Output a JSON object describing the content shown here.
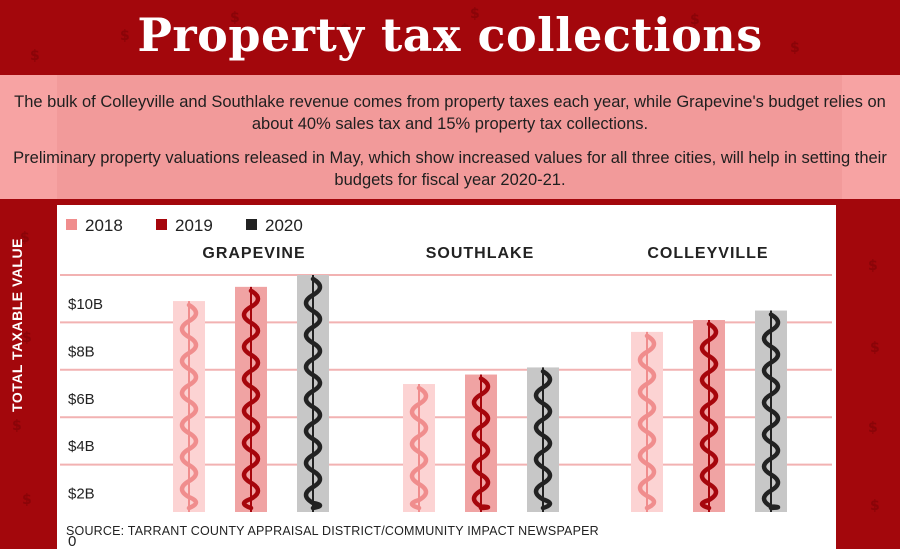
{
  "title": "Property tax collections",
  "intro": {
    "p1": "The bulk of Colleyville and Southlake revenue comes from property taxes each year, while Grapevine's budget relies on about 40% sales tax and 15% property tax collections.",
    "p2": "Preliminary property valuations released in May, which show increased values for all three cities, will help in setting their budgets for fiscal year 2020-21."
  },
  "source": "SOURCE: TARRANT COUNTY APPRAISAL DISTRICT/COMMUNITY IMPACT NEWSPAPER",
  "decor_symbol": "$",
  "colors": {
    "background": "#a3070c",
    "s2018": "#f08d8d",
    "s2019": "#a6060c",
    "s2020": "#222222",
    "s2018_back": "#fcd3d3",
    "s2019_back": "#f0a3a3",
    "s2020_back": "#c7c7c7",
    "grid": "#f2b2b2"
  },
  "chart_data": {
    "type": "bar",
    "categories": [
      "GRAPEVINE",
      "SOUTHLAKE",
      "COLLEYVILLE"
    ],
    "series": [
      {
        "name": "2018",
        "values": [
          8.9,
          5.4,
          7.6
        ]
      },
      {
        "name": "2019",
        "values": [
          9.5,
          5.8,
          8.1
        ]
      },
      {
        "name": "2020",
        "values": [
          10.0,
          6.1,
          8.5
        ]
      }
    ],
    "ylabel": "TOTAL TAXABLE VALUE",
    "ylim": [
      0,
      10
    ],
    "yticks": [
      {
        "value": 0,
        "label": "0"
      },
      {
        "value": 2,
        "label": "$2B"
      },
      {
        "value": 4,
        "label": "$4B"
      },
      {
        "value": 6,
        "label": "$6B"
      },
      {
        "value": 8,
        "label": "$8B"
      },
      {
        "value": 10,
        "label": "$10B"
      }
    ],
    "legend_position": "top-left",
    "grid": true
  }
}
